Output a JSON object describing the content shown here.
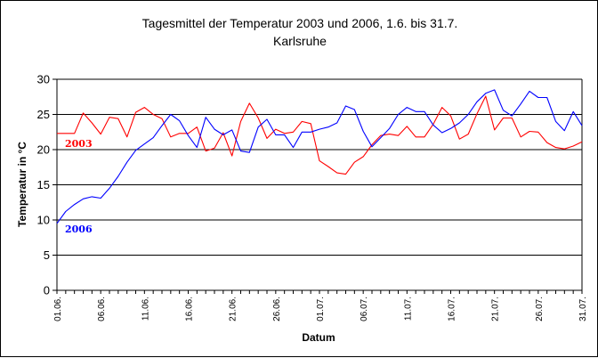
{
  "chart_data": {
    "type": "line",
    "title": "Tagesmittel der Temperatur 2003 und 2006, 1.6. bis 31.7.",
    "subtitle": "Karlsruhe",
    "xlabel": "Datum",
    "ylabel": "Temperatur in °C",
    "ylim": [
      0,
      30
    ],
    "yticks": [
      0,
      5,
      10,
      15,
      20,
      25,
      30
    ],
    "grid": true,
    "xticklabels": [
      "01.06.",
      "06.06.",
      "11.06.",
      "16.06.",
      "21.06.",
      "26.06.",
      "01.07.",
      "06.07.",
      "11.07.",
      "16.07.",
      "21.07.",
      "26.07.",
      "31.07."
    ],
    "series": [
      {
        "name": "2003",
        "color": "#ff0000",
        "values": [
          22.3,
          22.3,
          22.3,
          25.2,
          23.8,
          22.2,
          24.6,
          24.4,
          21.8,
          25.3,
          26.0,
          25.0,
          24.4,
          21.8,
          22.3,
          22.3,
          23.2,
          19.8,
          20.2,
          22.4,
          19.1,
          24.0,
          26.6,
          24.5,
          21.6,
          22.9,
          22.3,
          22.5,
          24.0,
          23.7,
          18.4,
          17.6,
          16.7,
          16.5,
          18.2,
          19.0,
          20.7,
          22.0,
          22.2,
          22.0,
          23.3,
          21.8,
          21.8,
          23.6,
          26.0,
          24.8,
          21.5,
          22.2,
          25.1,
          27.6,
          22.8,
          24.5,
          24.5,
          21.8,
          22.6,
          22.5,
          21.0,
          20.3,
          20.1,
          20.5,
          21.1
        ]
      },
      {
        "name": "2006",
        "color": "#0000ff",
        "values": [
          9.5,
          11.2,
          12.2,
          13.0,
          13.3,
          13.1,
          14.5,
          16.2,
          18.2,
          19.9,
          20.8,
          21.7,
          23.4,
          25.0,
          24.1,
          22.0,
          20.3,
          24.6,
          22.9,
          22.1,
          22.8,
          19.8,
          19.6,
          23.2,
          24.3,
          22.1,
          22.1,
          20.3,
          22.5,
          22.5,
          22.9,
          23.2,
          23.8,
          26.2,
          25.7,
          22.6,
          20.4,
          21.7,
          23.0,
          25.0,
          26.0,
          25.4,
          25.4,
          23.5,
          22.4,
          23.0,
          23.8,
          25.0,
          26.8,
          28.0,
          28.5,
          25.6,
          24.8,
          26.5,
          28.3,
          27.4,
          27.4,
          24.0,
          22.7,
          25.4,
          23.4
        ]
      }
    ]
  }
}
